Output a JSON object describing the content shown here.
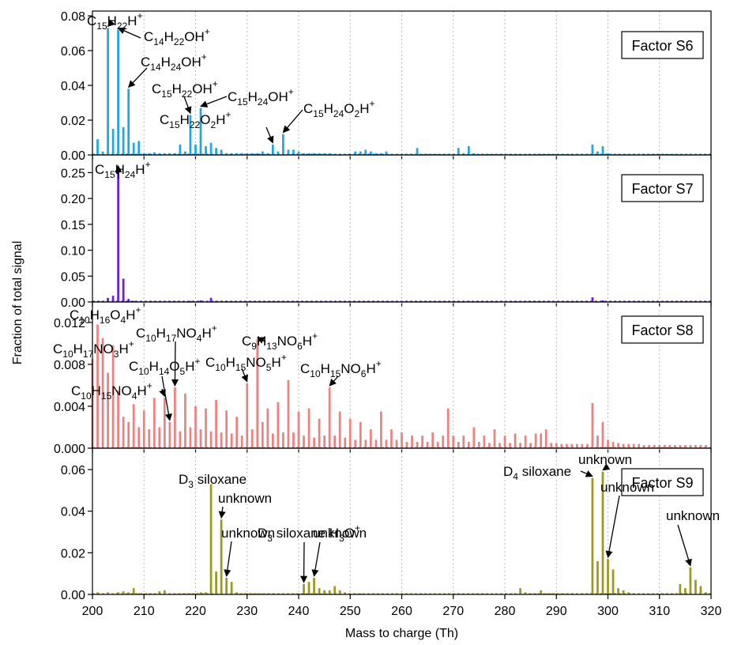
{
  "chart_data": {
    "type": "bar",
    "xlabel": "Mass to charge (Th)",
    "ylabel": "Fraction of total signal",
    "xlim": [
      200,
      320
    ],
    "xticks": [
      200,
      210,
      220,
      230,
      240,
      250,
      260,
      270,
      280,
      290,
      300,
      310,
      320
    ],
    "grid": "vertical dotted",
    "panels": [
      {
        "name": "Factor S6",
        "color": "#1EA7E1",
        "ylim": [
          0,
          0.08
        ],
        "yticks": [
          "0.00",
          "0.02",
          "0.04",
          "0.06",
          "0.08"
        ],
        "x": [
          201,
          202,
          203,
          204,
          205,
          206,
          207,
          208,
          209,
          210,
          211,
          212,
          213,
          214,
          215,
          216,
          217,
          218,
          219,
          220,
          221,
          222,
          223,
          224,
          225,
          226,
          227,
          228,
          229,
          230,
          231,
          232,
          233,
          234,
          235,
          236,
          237,
          238,
          239,
          240,
          241,
          242,
          243,
          244,
          245,
          246,
          247,
          248,
          249,
          250,
          251,
          252,
          253,
          254,
          255,
          256,
          257,
          258,
          259,
          260,
          261,
          262,
          263,
          264,
          265,
          266,
          267,
          268,
          269,
          270,
          271,
          272,
          273,
          274,
          275,
          276,
          277,
          278,
          279,
          280,
          281,
          282,
          283,
          284,
          285,
          286,
          287,
          288,
          289,
          290,
          291,
          292,
          293,
          294,
          295,
          296,
          297,
          298,
          299,
          300,
          301,
          302,
          303,
          304,
          305,
          306,
          307,
          308,
          309,
          310,
          311,
          312,
          313,
          314,
          315,
          316,
          317,
          318,
          319
        ],
        "values": [
          0.009,
          0.002,
          0.073,
          0.015,
          0.072,
          0.016,
          0.038,
          0.007,
          0.008,
          0.001,
          0.001,
          0.0015,
          0.001,
          0.001,
          0.001,
          0.001,
          0.006,
          0.002,
          0.023,
          0.006,
          0.027,
          0.005,
          0.007,
          0.004,
          0.003,
          0.001,
          0.001,
          0.001,
          0.001,
          0.001,
          0.001,
          0.001,
          0.002,
          0.001,
          0.006,
          0.002,
          0.012,
          0.003,
          0.003,
          0.002,
          0.001,
          0.001,
          0.001,
          0.001,
          0.001,
          0.001,
          0.0005,
          0.0005,
          0.0005,
          0.0005,
          0.002,
          0.002,
          0.003,
          0.002,
          0.001,
          0.001,
          0.002,
          0.0005,
          0.0005,
          0.0005,
          0.0005,
          0.0005,
          0.004,
          0.0005,
          0.0005,
          0.0005,
          0.0005,
          0.0005,
          0.0005,
          0.0005,
          0.004,
          0.001,
          0.005,
          0.001,
          0.0005,
          0.0005,
          0.0005,
          0.0005,
          0.0005,
          0.0005,
          0.0005,
          0.0005,
          0.0005,
          0.0005,
          0.0005,
          0.0005,
          0.0005,
          0.0005,
          0.0005,
          0.0005,
          0.0005,
          0.0005,
          0.0005,
          0.0005,
          0.0005,
          0.0005,
          0.006,
          0.002,
          0.005,
          0.001,
          0.0005,
          0.0005,
          0.0005,
          0.0005,
          0.0005,
          0.0005,
          0.0005,
          0.0005,
          0.0005,
          0.0005,
          0.0005,
          0.0005,
          0.0005,
          0.0005,
          0.0005,
          0.0005,
          0.0005,
          0.0005,
          0.0005
        ],
        "annotations": [
          {
            "label": "C15H22H+",
            "x": 203,
            "y": 0.073
          },
          {
            "label": "C14H22OH+",
            "x": 205,
            "y": 0.072
          },
          {
            "label": "C14H24OH+",
            "x": 207,
            "y": 0.038
          },
          {
            "label": "C15H22OH+",
            "x": 219,
            "y": 0.023
          },
          {
            "label": "C15H24OH+",
            "x": 221,
            "y": 0.027
          },
          {
            "label": "C15H22O2H+",
            "x": 235,
            "y": 0.006
          },
          {
            "label": "C15H24O2H+",
            "x": 237,
            "y": 0.012
          }
        ]
      },
      {
        "name": "Factor S7",
        "color": "#6A1FE0",
        "ylim": [
          0,
          0.275
        ],
        "yticks": [
          "0.00",
          "0.05",
          "0.10",
          "0.15",
          "0.20",
          "0.25"
        ],
        "x": [
          202,
          203,
          204,
          205,
          206,
          207,
          208,
          219,
          221,
          223,
          224,
          235,
          237,
          273,
          297,
          299
        ],
        "values": [
          0.002,
          0.008,
          0.012,
          0.26,
          0.045,
          0.006,
          0.002,
          0.002,
          0.003,
          0.008,
          0.002,
          0.001,
          0.002,
          0.002,
          0.009,
          0.003
        ],
        "annotations": [
          {
            "label": "C15H24H+",
            "x": 205,
            "y": 0.26
          }
        ]
      },
      {
        "name": "Factor S8",
        "color": "#F08080",
        "ylim": [
          0,
          0.0135
        ],
        "yticks": [
          "0.000",
          "0.004",
          "0.008",
          "0.012"
        ],
        "x": [
          200,
          201,
          202,
          203,
          204,
          205,
          206,
          207,
          208,
          209,
          210,
          211,
          212,
          213,
          214,
          215,
          216,
          217,
          218,
          219,
          220,
          221,
          222,
          223,
          224,
          225,
          226,
          227,
          228,
          229,
          230,
          231,
          232,
          233,
          234,
          235,
          236,
          237,
          238,
          239,
          240,
          241,
          242,
          243,
          244,
          245,
          246,
          247,
          248,
          249,
          250,
          251,
          252,
          253,
          254,
          255,
          256,
          257,
          258,
          259,
          260,
          261,
          262,
          263,
          264,
          265,
          266,
          267,
          268,
          269,
          270,
          271,
          272,
          273,
          274,
          275,
          276,
          277,
          278,
          279,
          280,
          281,
          282,
          283,
          284,
          285,
          286,
          287,
          288,
          289,
          290,
          291,
          292,
          293,
          294,
          295,
          296,
          297,
          298,
          299,
          300,
          301,
          302,
          303,
          304,
          305,
          306,
          307,
          308,
          309,
          310,
          311,
          312,
          313,
          314,
          315,
          316,
          317,
          318,
          319
        ],
        "values": [
          0.0085,
          0.0118,
          0.0105,
          0.0072,
          0.0098,
          0.0055,
          0.003,
          0.0025,
          0.0042,
          0.002,
          0.0036,
          0.0018,
          0.0048,
          0.002,
          0.0048,
          0.0025,
          0.0058,
          0.0016,
          0.0052,
          0.002,
          0.004,
          0.0018,
          0.0038,
          0.0016,
          0.0046,
          0.0015,
          0.0036,
          0.0014,
          0.003,
          0.0012,
          0.0062,
          0.0018,
          0.0104,
          0.0025,
          0.0038,
          0.0014,
          0.0044,
          0.0015,
          0.0065,
          0.0015,
          0.0035,
          0.0012,
          0.0038,
          0.001,
          0.0028,
          0.0012,
          0.0058,
          0.0012,
          0.0035,
          0.001,
          0.0028,
          0.0008,
          0.0025,
          0.0008,
          0.0018,
          0.0008,
          0.0035,
          0.0008,
          0.0018,
          0.0008,
          0.0015,
          0.0006,
          0.0012,
          0.0006,
          0.0012,
          0.0006,
          0.0015,
          0.0006,
          0.0012,
          0.0038,
          0.0012,
          0.0006,
          0.0012,
          0.0006,
          0.002,
          0.0006,
          0.0012,
          0.0005,
          0.0018,
          0.0005,
          0.0012,
          0.0005,
          0.0014,
          0.0005,
          0.0012,
          0.0005,
          0.0014,
          0.0014,
          0.0018,
          0.0005,
          0.0005,
          0.0004,
          0.0004,
          0.0004,
          0.0004,
          0.0004,
          0.0004,
          0.0043,
          0.0012,
          0.0025,
          0.0008,
          0.0006,
          0.0005,
          0.0004,
          0.0004,
          0.0004,
          0.0004,
          0.0003,
          0.0003,
          0.0003,
          0.0003,
          0.0003,
          0.0003,
          0.0003,
          0.0003,
          0.0003,
          0.0003,
          0.0003,
          0.0003,
          0.0003
        ],
        "annotations": [
          {
            "label": "C10H16O4H+",
            "x": 201,
            "y": 0.0118
          },
          {
            "label": "C10H17NO3H+",
            "x": 202,
            "y": 0.0105
          },
          {
            "label": "C10H15NO4H+",
            "x": 214,
            "y": 0.0048
          },
          {
            "label": "C10H14O5H+",
            "x": 215,
            "y": 0.0025
          },
          {
            "label": "C10H17NO4H+",
            "x": 216,
            "y": 0.0058
          },
          {
            "label": "C10H15NO5H+",
            "x": 230,
            "y": 0.0062
          },
          {
            "label": "C9H13NO6H+",
            "x": 232,
            "y": 0.0104
          },
          {
            "label": "C10H15NO6H+",
            "x": 246,
            "y": 0.0058
          }
        ]
      },
      {
        "name": "Factor S9",
        "color": "#9C9A1E",
        "ylim": [
          0,
          0.068
        ],
        "yticks": [
          "0.00",
          "0.02",
          "0.04",
          "0.06"
        ],
        "x": [
          201,
          202,
          203,
          204,
          205,
          206,
          207,
          208,
          209,
          210,
          211,
          212,
          213,
          214,
          215,
          216,
          217,
          218,
          219,
          220,
          221,
          222,
          223,
          224,
          225,
          226,
          227,
          228,
          229,
          230,
          231,
          232,
          233,
          234,
          235,
          236,
          237,
          238,
          239,
          240,
          241,
          242,
          243,
          244,
          245,
          246,
          247,
          248,
          249,
          250,
          251,
          252,
          283,
          284,
          285,
          286,
          287,
          288,
          289,
          290,
          291,
          292,
          293,
          294,
          295,
          296,
          297,
          298,
          299,
          300,
          301,
          302,
          303,
          304,
          305,
          306,
          314,
          315,
          316,
          317,
          318,
          319
        ],
        "values": [
          0.001,
          0.0005,
          0.001,
          0.0005,
          0.001,
          0.0015,
          0.001,
          0.003,
          0.0005,
          0.0005,
          0.0005,
          0.0005,
          0.0015,
          0.002,
          0.0005,
          0.0005,
          0.0005,
          0.0005,
          0.0005,
          0.0005,
          0.001,
          0.001,
          0.053,
          0.011,
          0.036,
          0.008,
          0.006,
          0.001,
          0.0005,
          0.0005,
          0.0005,
          0.0005,
          0.0005,
          0.0005,
          0.0005,
          0.0005,
          0.0005,
          0.0005,
          0.0005,
          0.0005,
          0.005,
          0.006,
          0.008,
          0.003,
          0.002,
          0.002,
          0.004,
          0.002,
          0.001,
          0.0005,
          0.0005,
          0.0005,
          0.003,
          0.001,
          0.0005,
          0.0005,
          0.002,
          0.0005,
          0.0005,
          0.0005,
          0.0005,
          0.0005,
          0.0005,
          0.0005,
          0.0005,
          0.0005,
          0.056,
          0.016,
          0.059,
          0.017,
          0.012,
          0.003,
          0.002,
          0.001,
          0.0005,
          0.0005,
          0.005,
          0.003,
          0.013,
          0.007,
          0.004,
          0.001
        ],
        "annotations": [
          {
            "label": "D3 siloxane",
            "x": 223,
            "y": 0.053
          },
          {
            "label": "unknown",
            "x": 225,
            "y": 0.036
          },
          {
            "label": "unknown",
            "x": 226,
            "y": 0.008
          },
          {
            "label": "D3 siloxane H3O+",
            "x": 241,
            "y": 0.005
          },
          {
            "label": "unknown",
            "x": 243,
            "y": 0.008
          },
          {
            "label": "D4 siloxane",
            "x": 297,
            "y": 0.056
          },
          {
            "label": "unknown",
            "x": 299,
            "y": 0.059
          },
          {
            "label": "unknown",
            "x": 300,
            "y": 0.017
          },
          {
            "label": "unknown",
            "x": 316,
            "y": 0.013
          }
        ]
      }
    ]
  }
}
